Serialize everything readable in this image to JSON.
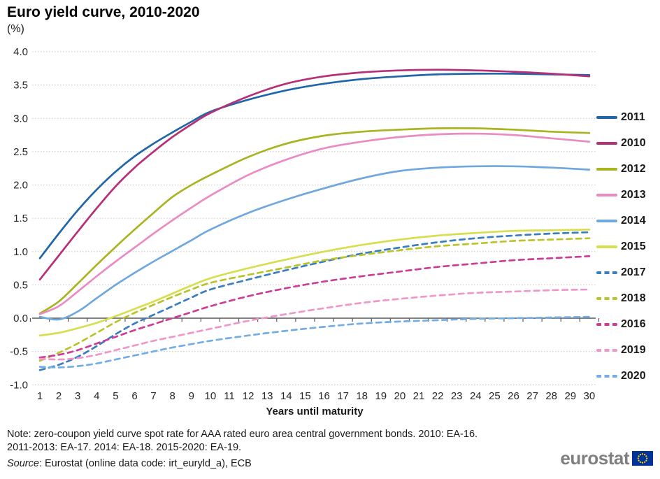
{
  "title": "Euro yield curve, 2010-2020",
  "subtitle": "(%)",
  "chart_data": {
    "type": "line",
    "title": "Euro yield curve, 2010-2020",
    "subtitle": "(%)",
    "xlabel": "Years until maturity",
    "ylabel": "(%)",
    "ylim": [
      -1.0,
      4.0
    ],
    "grid": "horizontal-dotted",
    "legend_position": "right",
    "x_ticks": [
      1,
      2,
      3,
      4,
      5,
      6,
      7,
      8,
      9,
      10,
      11,
      12,
      13,
      14,
      15,
      16,
      17,
      18,
      19,
      20,
      21,
      22,
      23,
      24,
      25,
      26,
      27,
      28,
      29,
      30
    ],
    "y_tick_labels": [
      "4.0",
      "3.5",
      "3.0",
      "2.5",
      "2.0",
      "1.5",
      "1.0",
      "0.5",
      "0.0",
      "-0.5",
      "-1.0"
    ],
    "y_tick_values": [
      4.0,
      3.5,
      3.0,
      2.5,
      2.0,
      1.5,
      1.0,
      0.5,
      0.0,
      -0.5,
      -1.0
    ],
    "maturities": [
      1,
      2,
      3,
      4,
      5,
      6,
      7,
      8,
      9,
      10,
      12,
      14,
      16,
      18,
      20,
      22,
      24,
      26,
      28,
      30
    ],
    "series": [
      {
        "name": "2011",
        "color": "#2066a8",
        "style": "solid",
        "values": [
          0.9,
          1.27,
          1.62,
          1.93,
          2.2,
          2.43,
          2.62,
          2.79,
          2.95,
          3.1,
          3.28,
          3.42,
          3.52,
          3.59,
          3.63,
          3.66,
          3.67,
          3.67,
          3.66,
          3.65
        ]
      },
      {
        "name": "2010",
        "color": "#b53077",
        "style": "solid",
        "values": [
          0.58,
          0.94,
          1.3,
          1.65,
          1.98,
          2.26,
          2.5,
          2.72,
          2.91,
          3.08,
          3.33,
          3.52,
          3.63,
          3.69,
          3.72,
          3.73,
          3.72,
          3.7,
          3.67,
          3.63
        ]
      },
      {
        "name": "2012",
        "color": "#a9b420",
        "style": "solid",
        "values": [
          0.07,
          0.25,
          0.52,
          0.8,
          1.07,
          1.33,
          1.58,
          1.82,
          2.0,
          2.15,
          2.42,
          2.62,
          2.74,
          2.8,
          2.83,
          2.85,
          2.85,
          2.83,
          2.8,
          2.78
        ]
      },
      {
        "name": "2013",
        "color": "#ea8cc3",
        "style": "solid",
        "values": [
          0.06,
          0.18,
          0.4,
          0.63,
          0.85,
          1.06,
          1.27,
          1.47,
          1.66,
          1.84,
          2.15,
          2.38,
          2.55,
          2.65,
          2.72,
          2.76,
          2.77,
          2.75,
          2.7,
          2.65
        ]
      },
      {
        "name": "2014",
        "color": "#70a7dd",
        "style": "solid",
        "values": [
          0.02,
          -0.02,
          0.1,
          0.3,
          0.5,
          0.68,
          0.85,
          1.01,
          1.17,
          1.33,
          1.58,
          1.78,
          1.95,
          2.1,
          2.21,
          2.26,
          2.28,
          2.28,
          2.26,
          2.23
        ]
      },
      {
        "name": "2015",
        "color": "#d7de4f",
        "style": "solid",
        "values": [
          -0.26,
          -0.22,
          -0.15,
          -0.07,
          0.03,
          0.14,
          0.25,
          0.37,
          0.49,
          0.6,
          0.75,
          0.88,
          1.0,
          1.1,
          1.18,
          1.24,
          1.28,
          1.31,
          1.32,
          1.33
        ]
      },
      {
        "name": "2017",
        "color": "#3b7ec0",
        "style": "dashed",
        "values": [
          -0.78,
          -0.7,
          -0.58,
          -0.42,
          -0.24,
          -0.08,
          0.05,
          0.18,
          0.31,
          0.43,
          0.58,
          0.72,
          0.85,
          0.97,
          1.06,
          1.14,
          1.2,
          1.24,
          1.27,
          1.29
        ]
      },
      {
        "name": "2018",
        "color": "#b9c428",
        "style": "dashed",
        "values": [
          -0.64,
          -0.52,
          -0.38,
          -0.22,
          -0.06,
          0.08,
          0.2,
          0.32,
          0.43,
          0.53,
          0.65,
          0.76,
          0.87,
          0.95,
          1.02,
          1.08,
          1.12,
          1.16,
          1.18,
          1.2
        ]
      },
      {
        "name": "2016",
        "color": "#cc3d96",
        "style": "dashed",
        "values": [
          -0.59,
          -0.55,
          -0.48,
          -0.38,
          -0.28,
          -0.18,
          -0.09,
          0.0,
          0.09,
          0.18,
          0.33,
          0.45,
          0.55,
          0.63,
          0.7,
          0.77,
          0.82,
          0.87,
          0.9,
          0.93
        ]
      },
      {
        "name": "2019",
        "color": "#ef97c9",
        "style": "dashed",
        "values": [
          -0.61,
          -0.62,
          -0.6,
          -0.55,
          -0.48,
          -0.41,
          -0.34,
          -0.28,
          -0.22,
          -0.16,
          -0.04,
          0.06,
          0.15,
          0.23,
          0.29,
          0.34,
          0.38,
          0.4,
          0.42,
          0.43
        ]
      },
      {
        "name": "2020",
        "color": "#74ade4",
        "style": "dashed",
        "values": [
          -0.73,
          -0.74,
          -0.72,
          -0.68,
          -0.62,
          -0.56,
          -0.5,
          -0.44,
          -0.39,
          -0.34,
          -0.26,
          -0.19,
          -0.13,
          -0.08,
          -0.05,
          -0.03,
          -0.01,
          0.0,
          0.01,
          0.02
        ]
      }
    ]
  },
  "notes": {
    "line1": "Note: zero-coupon yield curve spot rate for AAA rated euro area central government bonds. 2010: EA-16.",
    "line2": "2011-2013: EA-17. 2014: EA-18. 2015-2020: EA-19.",
    "source_label": "Source",
    "source_rest": ": Eurostat (online data code: irt_euryld_a),  ECB"
  },
  "logo": {
    "text": "eurostat",
    "text_color": "#7f7f7f",
    "flag_color": "#003399",
    "star_color": "#ffcc00"
  },
  "style": {
    "gridline_color": "#c6c6c6",
    "axis_color": "#595959",
    "tick_label_color": "#262626"
  }
}
